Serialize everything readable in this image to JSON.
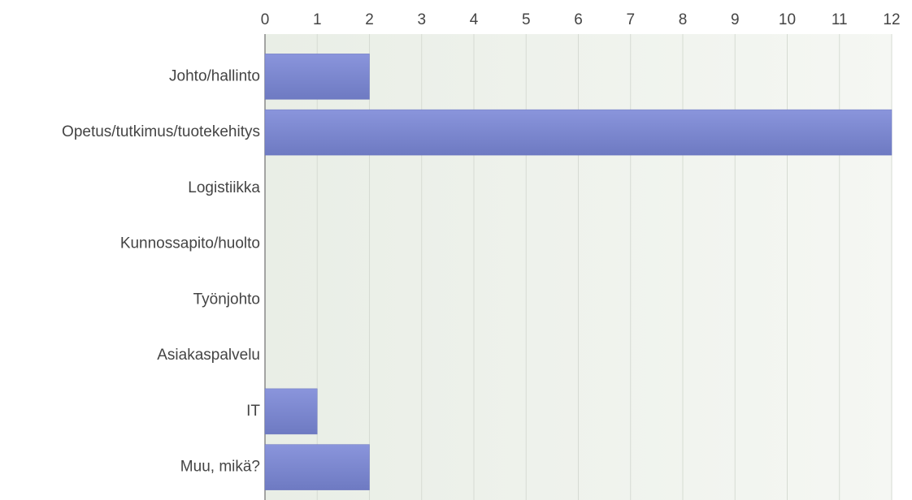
{
  "chart_data": {
    "type": "hbar",
    "categories": [
      "Johto/hallinto",
      "Opetus/tutkimus/tuotekehitys",
      "Logistiikka",
      "Kunnossapito/huolto",
      "Työnjohto",
      "Asiakaspalvelu",
      "IT",
      "Muu, mikä?"
    ],
    "values": [
      2,
      12,
      0,
      0,
      0,
      0,
      1,
      2
    ],
    "color": "#7f8ad3",
    "xlim": [
      0,
      12
    ],
    "xticks": [
      0,
      1,
      2,
      3,
      4,
      5,
      6,
      7,
      8,
      9,
      10,
      11,
      12
    ],
    "grid": true
  }
}
